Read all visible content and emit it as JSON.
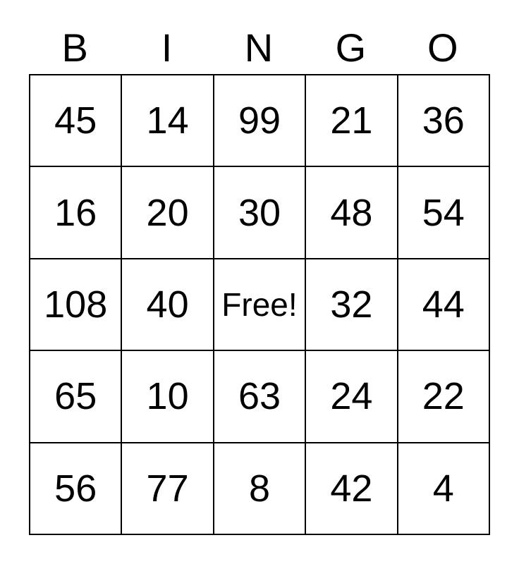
{
  "card": {
    "title_letters": [
      "B",
      "I",
      "N",
      "G",
      "O"
    ],
    "rows": [
      [
        "45",
        "14",
        "99",
        "21",
        "36"
      ],
      [
        "16",
        "20",
        "30",
        "48",
        "54"
      ],
      [
        "108",
        "40",
        "Free!",
        "32",
        "44"
      ],
      [
        "65",
        "10",
        "63",
        "24",
        "22"
      ],
      [
        "56",
        "77",
        "8",
        "42",
        "4"
      ]
    ],
    "free_cell": {
      "row_index": 2,
      "col_index": 2,
      "label": "Free!"
    },
    "colors": {
      "background": "#ffffff",
      "grid_line": "#000000",
      "text": "#000000"
    }
  }
}
